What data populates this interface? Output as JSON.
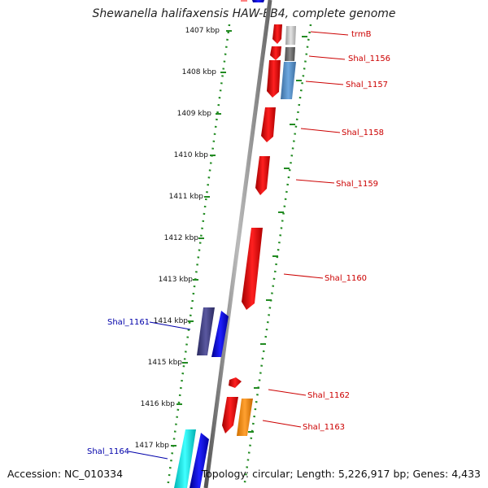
{
  "header": {
    "title": "Shewanella halifaxensis HAW-EB4, complete genome"
  },
  "footer": {
    "accession": "Accession: NC_010334",
    "topology": "Topology: circular; Length: 5,226,917 bp; Genes: 4,433"
  },
  "colors": {
    "forward_gene": "#ff0000",
    "reverse_gene": "#0000ff",
    "label_red": "#cc0000",
    "label_blue": "#0000aa",
    "scale_dots": "#228b22",
    "backbone": "#888888"
  },
  "scale_ticks": [
    "1407 kbp",
    "1408 kbp",
    "1409 kbp",
    "1410 kbp",
    "1411 kbp",
    "1412 kbp",
    "1413 kbp",
    "1414 kbp",
    "1415 kbp",
    "1416 kbp",
    "1417 kbp"
  ],
  "genes": [
    {
      "label": "trmB",
      "color": "silver",
      "strand": "right"
    },
    {
      "label": "Shal_1156",
      "color": "gray",
      "strand": "right"
    },
    {
      "label": "Shal_1157",
      "color": "steelblue",
      "strand": "right"
    },
    {
      "label": "Shal_1158",
      "color": "red",
      "strand": "right"
    },
    {
      "label": "Shal_1159",
      "color": "red",
      "strand": "right"
    },
    {
      "label": "Shal_1160",
      "color": "red",
      "strand": "right"
    },
    {
      "label": "Shal_1161",
      "color": "navy",
      "strand": "left"
    },
    {
      "label": "Shal_1162",
      "color": "red",
      "strand": "right"
    },
    {
      "label": "Shal_1163",
      "color": "orange",
      "strand": "right"
    },
    {
      "label": "Shal_1164",
      "color": "cyan",
      "strand": "left"
    }
  ]
}
